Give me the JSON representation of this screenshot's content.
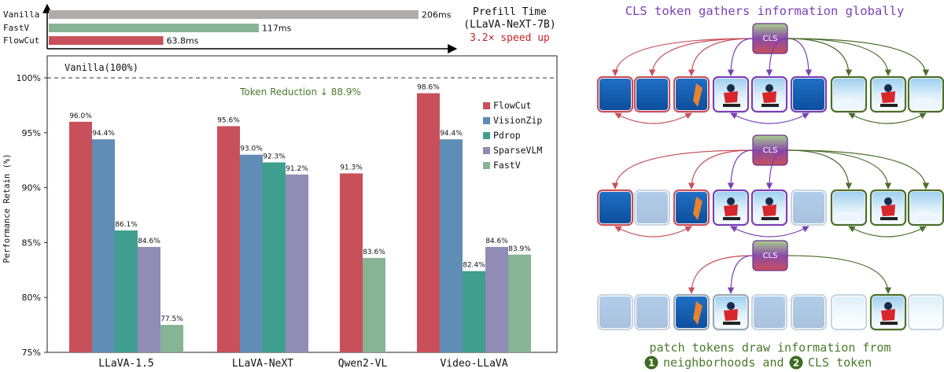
{
  "colors": {
    "FlowCut": "#c8505a",
    "VisionZip": "#5f8db5",
    "Pdrop": "#3f9f8e",
    "SparseVLM": "#908cb6",
    "FastV": "#86b494",
    "vanilla_bar": "#b0acac",
    "red_border": "#c8505a",
    "purple_border": "#7a3fb5",
    "green_border": "#4a6e2c",
    "title_purple": "#7a3fb5",
    "text_green": "#4a7a2a",
    "speed_red": "#c62828"
  },
  "prefill": {
    "title_line1": "Prefill Time",
    "title_line2": "(LLaVA-NeXT-7B)",
    "speedup": "3.2× speed up"
  },
  "chart_data": [
    {
      "type": "bar",
      "orientation": "horizontal",
      "categories": [
        "Vanilla",
        "FastV",
        "FlowCut"
      ],
      "values": [
        206,
        117,
        63.8
      ],
      "value_labels": [
        "206ms",
        "117ms",
        "63.8ms"
      ],
      "unit": "ms",
      "title": "Prefill Time (LLaVA-NeXT-7B)",
      "annotation": "3.2× speed up",
      "bar_colors": [
        "#b0acac",
        "#86b494",
        "#c8505a"
      ]
    },
    {
      "type": "bar",
      "categories": [
        "LLaVA-1.5",
        "LLaVA-NeXT",
        "Qwen2-VL",
        "Video-LLaVA"
      ],
      "ylabel": "Performance Retain (%)",
      "ylim": [
        75,
        100
      ],
      "yticks": [
        75,
        80,
        85,
        90,
        95,
        100
      ],
      "ytick_labels": [
        "75%",
        "80%",
        "85%",
        "90%",
        "95%",
        "100%"
      ],
      "reference_line": {
        "value": 100,
        "label": "Vanilla(100%)"
      },
      "annotation": "Token Reduction ↓ 88.9%",
      "legend_position": "top-right",
      "series": [
        {
          "name": "FlowCut",
          "values": [
            96.0,
            95.6,
            91.3,
            98.6
          ],
          "labels": [
            "96.0%",
            "95.6%",
            "91.3%",
            "98.6%"
          ]
        },
        {
          "name": "VisionZip",
          "values": [
            94.4,
            93.0,
            null,
            94.4
          ],
          "labels": [
            "94.4%",
            "93.0%",
            "",
            "94.4%"
          ]
        },
        {
          "name": "Pdrop",
          "values": [
            86.1,
            92.3,
            null,
            82.4
          ],
          "labels": [
            "86.1%",
            "92.3%",
            "",
            "82.4%"
          ]
        },
        {
          "name": "SparseVLM",
          "values": [
            84.6,
            91.2,
            null,
            84.6
          ],
          "labels": [
            "84.6%",
            "91.2%",
            "",
            "84.6%"
          ]
        },
        {
          "name": "FastV",
          "values": [
            77.5,
            null,
            83.6,
            83.9
          ],
          "labels": [
            "77.5%",
            "",
            "83.6%",
            "83.9%"
          ]
        }
      ]
    }
  ],
  "diagram": {
    "title": "CLS token gathers information globally",
    "cls_label": "CLS",
    "caption_line1": "patch tokens draw information from",
    "caption_line2_a": "neighborhoods and",
    "caption_line2_b": "CLS token",
    "badge_1": "1",
    "badge_2": "2",
    "rows": [
      {
        "patches": [
          "red:ocean",
          "red:ocean",
          "red:kite",
          "purple:skier",
          "purple:skier",
          "purple:ocean",
          "green:snow",
          "green:skier",
          "green:snow"
        ]
      },
      {
        "patches": [
          "red:ocean",
          "faded",
          "red:kite",
          "purple:skier",
          "purple:skier",
          "faded",
          "green:snow",
          "green:skier",
          "green:snow"
        ]
      },
      {
        "patches": [
          "faded",
          "faded",
          "plain:kite",
          "plain:skier",
          "faded",
          "faded",
          "faded",
          "green:skier",
          "faded"
        ]
      }
    ]
  }
}
